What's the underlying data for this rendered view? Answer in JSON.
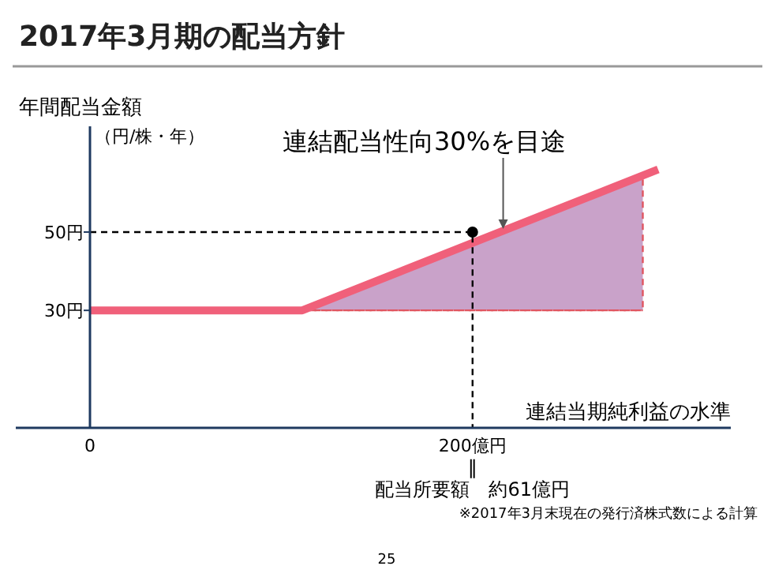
{
  "chart_data": {
    "type": "line",
    "title": "2017年3月期の配当方針",
    "xlabel": "連結当期純利益の水準",
    "ylabel": "年間配当金額",
    "xlim": [
      0,
      335
    ],
    "ylim": [
      0,
      77
    ],
    "xticks": [
      {
        "value": 0,
        "label": "0"
      },
      {
        "value": 200,
        "label": "200億円"
      }
    ],
    "yticks": [
      {
        "value": 0,
        "label": null
      },
      {
        "value": 30,
        "label": "30円"
      },
      {
        "value": 50,
        "label": "50円"
      }
    ],
    "series": [
      {
        "type": "line",
        "color": "#e05560",
        "x": [
          115,
          289
        ],
        "values": [
          30,
          30
        ],
        "lower": [
          30,
          30
        ],
        "upper": [
          31,
          65
        ],
        "line_style": "dashed"
      },
      {
        "color": "#f0607a",
        "x": [
          0,
          111,
          297
        ],
        "values": [
          30,
          30,
          66
        ]
      },
      {
        "type": "line",
        "color": "#000000",
        "x": [
          0,
          200,
          200
        ],
        "values": [
          50,
          50,
          0
        ],
        "line_style": "dashed"
      },
      {
        "type": "scatter",
        "color": "#000000",
        "x": [
          200
        ],
        "values": [
          50
        ]
      }
    ],
    "annotations": [
      "（円/株・年）",
      {
        "text": "連結配当性向30%を目途",
        "x": 216,
        "y": 50
      },
      "‖",
      "配当所要額　約61億円",
      "※2017年3月末現在の発行済株式数による計算",
      "25"
    ]
  }
}
